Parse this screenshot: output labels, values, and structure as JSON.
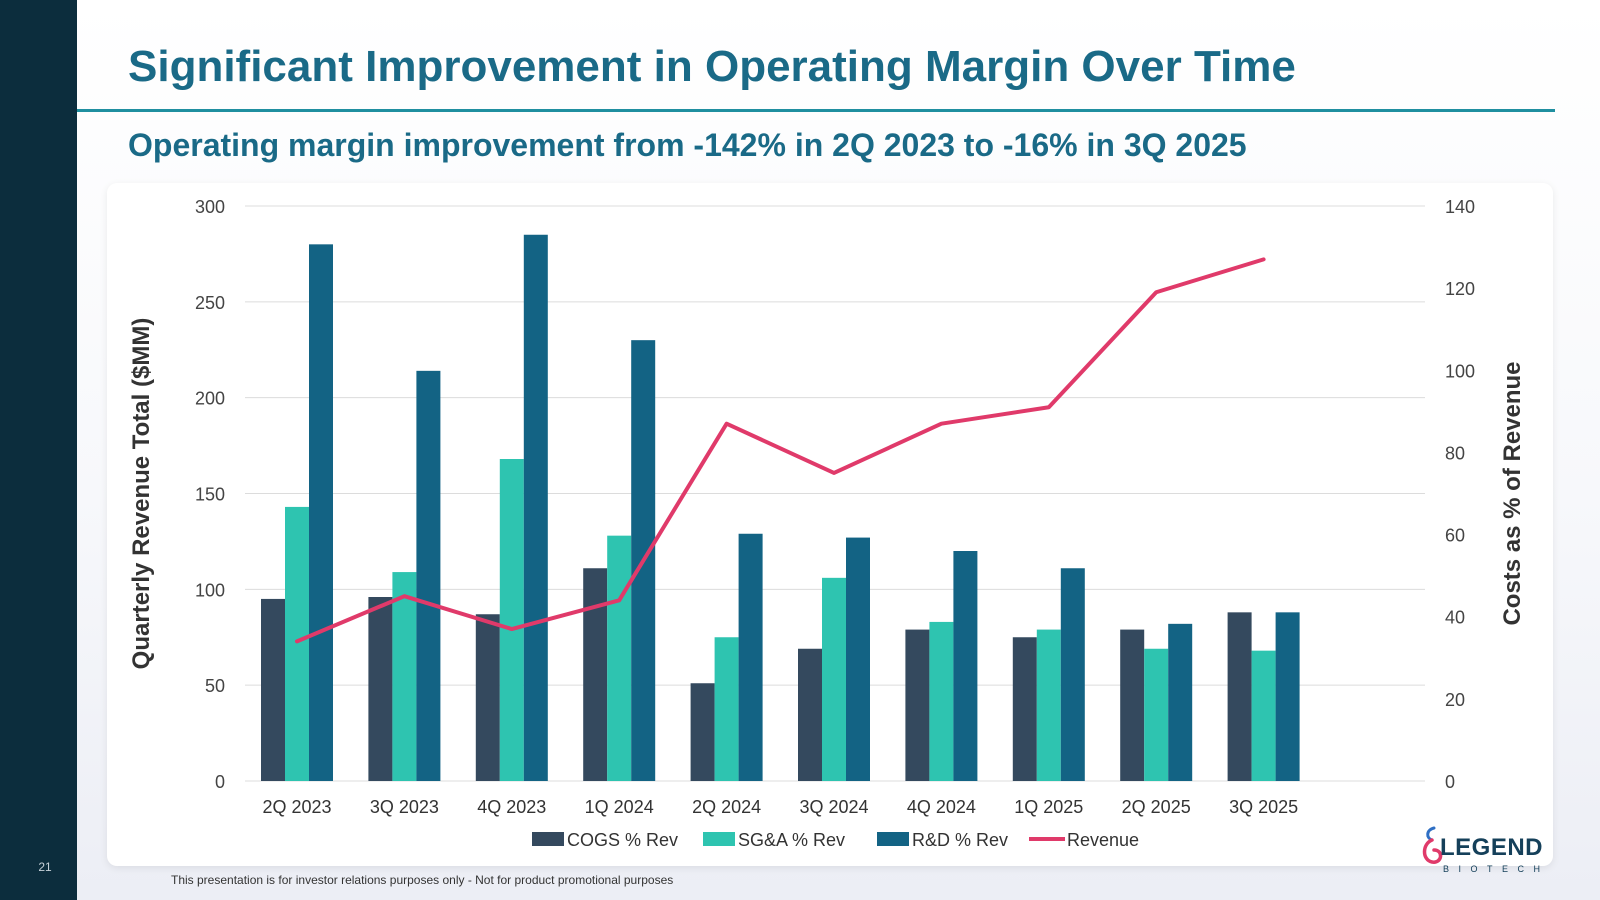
{
  "slide": {
    "number": "21",
    "title": "Significant Improvement in Operating Margin Over Time",
    "subtitle": "Operating margin improvement from -142% in 2Q 2023 to -16% in 3Q 2025",
    "footer": "This presentation is for investor relations purposes only - Not for product promotional purposes"
  },
  "logo": {
    "word": "LEGEND",
    "sub": "BIOTECH"
  },
  "colors": {
    "sidebar": "#0c2d3d",
    "title": "#1a6a87",
    "cogs": "#34495e",
    "sga": "#2ec4b0",
    "rd": "#136384",
    "revenue": "#e03a6a"
  },
  "chart_data": {
    "type": "bar",
    "title": "",
    "categories": [
      "2Q 2023",
      "3Q 2023",
      "4Q 2023",
      "1Q 2024",
      "2Q 2024",
      "3Q 2024",
      "4Q 2024",
      "1Q 2025",
      "2Q 2025",
      "3Q 2025"
    ],
    "ylabel": "Quarterly Revenue Total ($MM)",
    "ylabel_right": "Costs as % of Revenue",
    "ylim": [
      0,
      300
    ],
    "ylim_right": [
      0,
      140
    ],
    "yticks": [
      0,
      50,
      100,
      150,
      200,
      250,
      300
    ],
    "yticks_right": [
      0,
      20,
      40,
      60,
      80,
      100,
      120,
      140
    ],
    "grid": true,
    "legend_position": "bottom",
    "series": [
      {
        "name": "COGS % Rev",
        "type": "bar",
        "axis": "left",
        "values": [
          95,
          96,
          87,
          111,
          51,
          69,
          79,
          75,
          79,
          88
        ]
      },
      {
        "name": "SG&A % Rev",
        "type": "bar",
        "axis": "left",
        "values": [
          143,
          109,
          168,
          128,
          75,
          106,
          83,
          79,
          69,
          68
        ]
      },
      {
        "name": "R&D % Rev",
        "type": "bar",
        "axis": "left",
        "values": [
          280,
          214,
          285,
          230,
          129,
          127,
          120,
          111,
          82,
          88
        ]
      },
      {
        "name": "Revenue",
        "type": "line",
        "axis": "right",
        "values": [
          34,
          45,
          37,
          44,
          87,
          75,
          87,
          91,
          119,
          127
        ]
      }
    ]
  }
}
